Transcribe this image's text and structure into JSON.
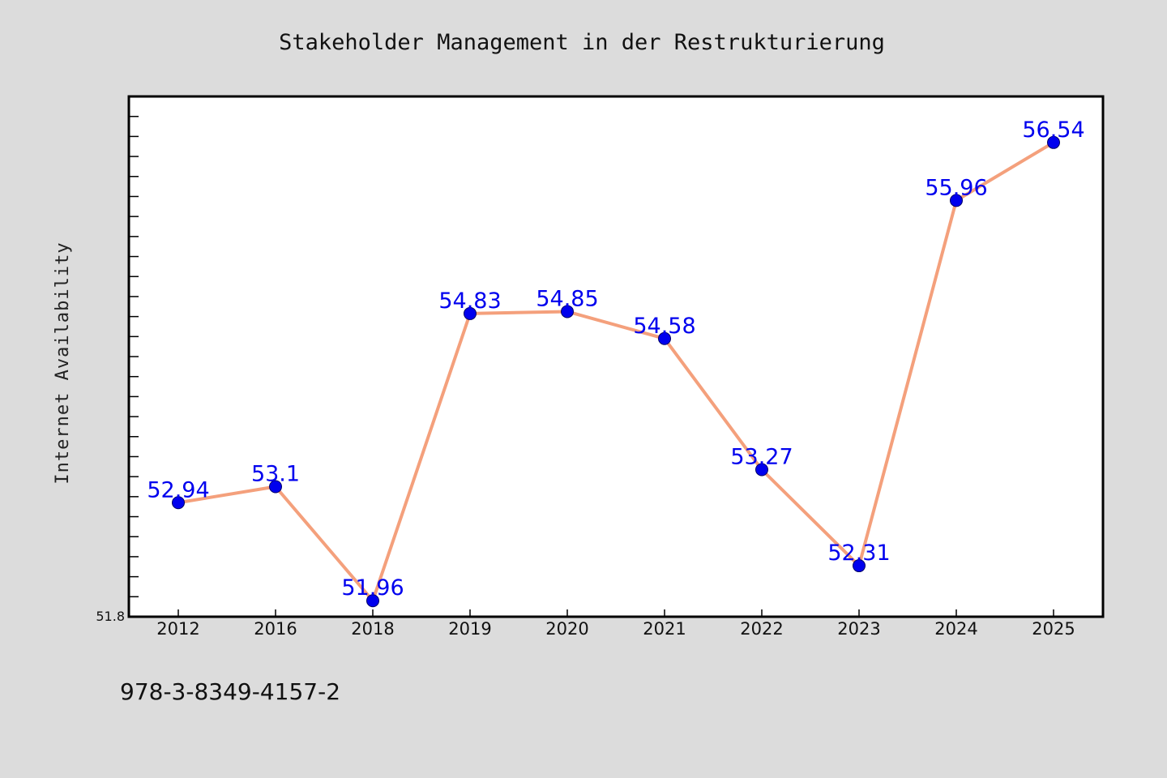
{
  "colors": {
    "page_background": "#dcdcdc",
    "plot_background": "#ffffff",
    "line": "#f4a07c",
    "marker": "#0000ee",
    "data_label": "#0000ee",
    "axis": "#000000"
  },
  "chart_data": {
    "type": "line",
    "title": "Stakeholder Management in der Restrukturierung",
    "xlabel": "",
    "ylabel": "Internet Availability",
    "categories": [
      "2012",
      "2016",
      "2018",
      "2019",
      "2020",
      "2021",
      "2022",
      "2023",
      "2024",
      "2025"
    ],
    "series": [
      {
        "values": [
          52.94,
          53.1,
          51.96,
          54.83,
          54.85,
          54.58,
          53.27,
          52.31,
          55.96,
          56.54
        ],
        "labels": [
          "52.94",
          "53.1",
          "51.96",
          "54.83",
          "54.85",
          "54.58",
          "53.27",
          "52.31",
          "55.96",
          "56.54"
        ]
      }
    ],
    "ylim": [
      51.8,
      57.0
    ],
    "yticks_labeled": [
      "51.8"
    ],
    "ytick_minor_step": 0.2,
    "grid": false,
    "legend": "none",
    "marker": "circle"
  },
  "footer": {
    "isbn": "978-3-8349-4157-2"
  }
}
